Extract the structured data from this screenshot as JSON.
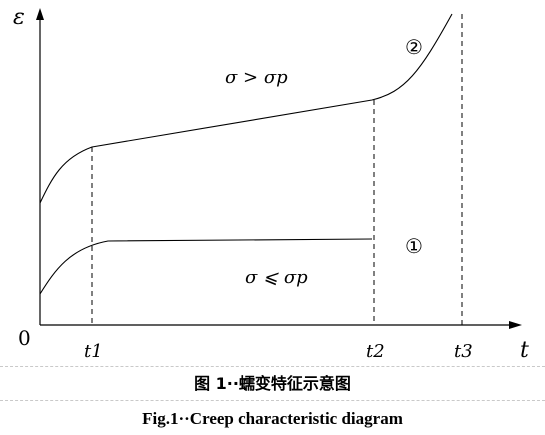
{
  "diagram": {
    "axis_y_label": "ε",
    "axis_x_label": "t",
    "origin_label": "0",
    "upper_curve_label": "σ > σp",
    "lower_curve_label": "σ ⩽ σp",
    "upper_curve_marker": "②",
    "lower_curve_marker": "①",
    "tick_labels": [
      "t1",
      "t2",
      "t3"
    ]
  },
  "caption": {
    "chinese": "图 1··蠕变特征示意图",
    "english": "Fig.1··Creep characteristic diagram"
  }
}
